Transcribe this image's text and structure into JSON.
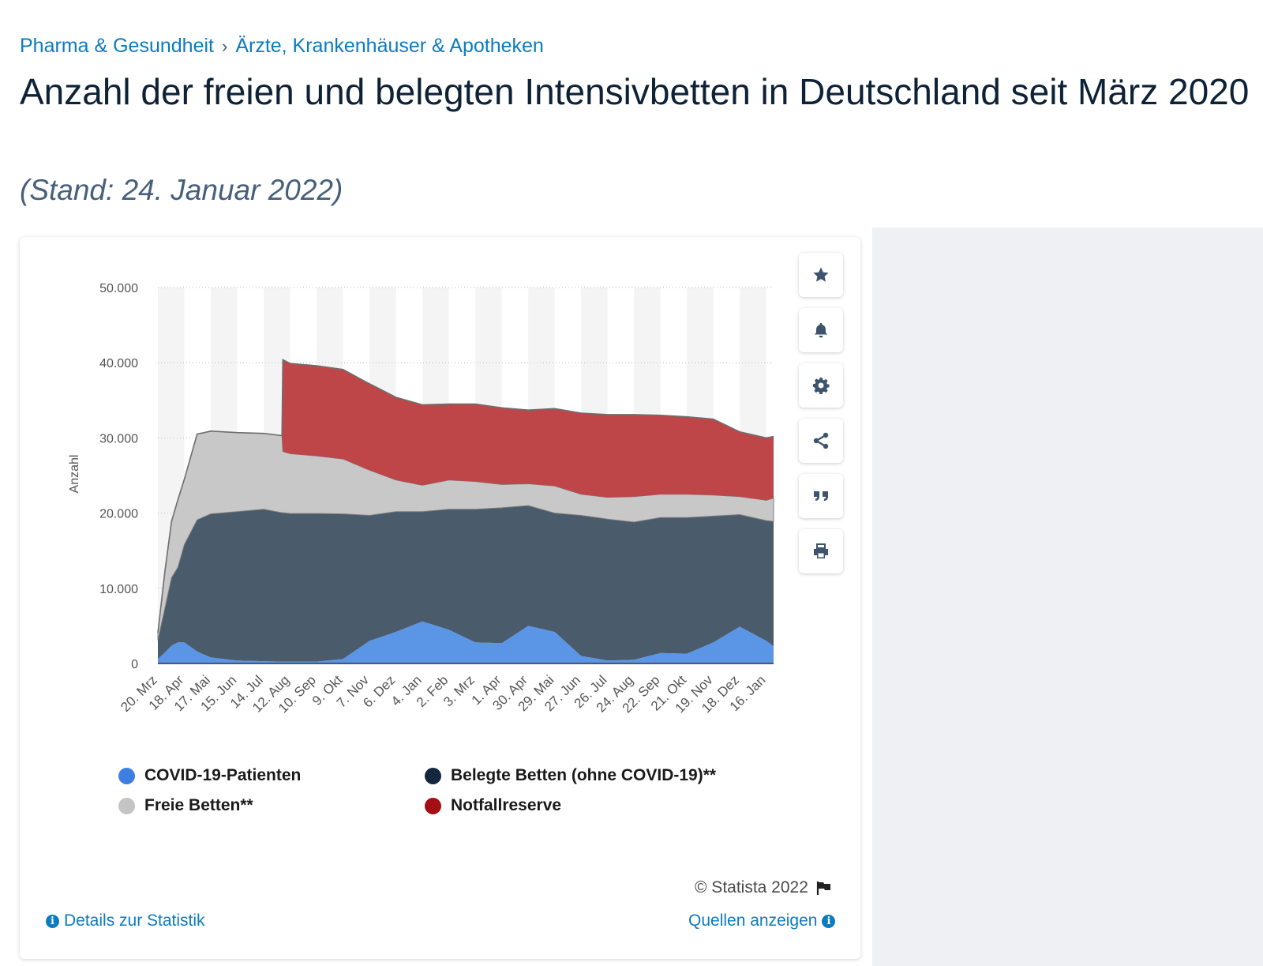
{
  "breadcrumb": {
    "category": "Pharma & Gesundheit",
    "separator": "›",
    "subcategory": "Ärzte, Krankenhäuser & Apotheken"
  },
  "page_title": "Anzahl der freien und belegten Intensivbetten in Deutschland seit März 2020",
  "subtitle": "(Stand: 24. Januar 2022)",
  "toolbar": {
    "icons": [
      "star-icon",
      "bell-icon",
      "gear-icon",
      "share-icon",
      "quote-icon",
      "print-icon"
    ]
  },
  "footer": {
    "copyright": "© Statista 2022",
    "details_link": "Details zur Statistik",
    "sources_link": "Quellen anzeigen"
  },
  "colors": {
    "covid": "#5b95e6",
    "belegt": "#4a5b6c",
    "frei": "#c8c8c8",
    "notfall": "#bf4648",
    "covid_legend": "#3d7fe0",
    "belegt_legend": "#13283e",
    "frei_legend": "#c4c4c4",
    "notfall_legend": "#a30f14",
    "link": "#0b7cbf"
  },
  "chart_data": {
    "type": "area",
    "stacked": true,
    "ylabel": "Anzahl",
    "ylim": [
      0,
      50000
    ],
    "yticks": [
      0,
      10000,
      20000,
      30000,
      40000,
      50000
    ],
    "ytick_labels": [
      "0",
      "10.000",
      "20.000",
      "30.000",
      "40.000",
      "50.000"
    ],
    "grid": "horizontal dotted",
    "legend_position": "bottom",
    "x_tick_labels": [
      "20. Mrz",
      "18. Apr",
      "17. Mai",
      "15. Jun",
      "14. Jul",
      "12. Aug",
      "10. Sep",
      "9. Okt",
      "7. Nov",
      "6. Dez",
      "4. Jan",
      "2. Feb",
      "3. Mrz",
      "1. Apr",
      "30. Apr",
      "29. Mai",
      "27. Jun",
      "26. Jul",
      "24. Aug",
      "22. Sep",
      "21. Okt",
      "19. Nov",
      "18. Dez",
      "16. Jan"
    ],
    "x": [
      "2020-03-20",
      "2020-03-28",
      "2020-04-04",
      "2020-04-11",
      "2020-04-18",
      "2020-05-02",
      "2020-05-17",
      "2020-06-15",
      "2020-07-14",
      "2020-08-03",
      "2020-08-04",
      "2020-08-12",
      "2020-09-10",
      "2020-10-09",
      "2020-11-07",
      "2020-12-06",
      "2021-01-04",
      "2021-02-02",
      "2021-03-03",
      "2021-04-01",
      "2021-04-30",
      "2021-05-29",
      "2021-06-27",
      "2021-07-26",
      "2021-08-24",
      "2021-09-22",
      "2021-10-21",
      "2021-11-19",
      "2021-12-18",
      "2022-01-16",
      "2022-01-24"
    ],
    "series": [
      {
        "name": "COVID-19-Patienten",
        "values": [
          600,
          1500,
          2400,
          2800,
          2800,
          1600,
          800,
          400,
          300,
          250,
          250,
          250,
          250,
          600,
          3000,
          4200,
          5600,
          4500,
          2800,
          2700,
          5000,
          4200,
          1000,
          400,
          500,
          1400,
          1300,
          2800,
          4900,
          3000,
          2300
        ]
      },
      {
        "name": "Belegte Betten (ohne COVID-19)**",
        "values": [
          2500,
          6000,
          9000,
          10000,
          13000,
          17500,
          19100,
          19800,
          20200,
          19800,
          19800,
          19700,
          19700,
          19300,
          16700,
          16000,
          14600,
          16000,
          17700,
          18000,
          16000,
          15800,
          18700,
          18800,
          18300,
          18000,
          18100,
          16800,
          14900,
          16000,
          16600
        ]
      },
      {
        "name": "Freie Betten**",
        "values": [
          1000,
          5000,
          7500,
          9000,
          8700,
          11400,
          11000,
          10500,
          10100,
          10250,
          8150,
          7950,
          7650,
          7300,
          6000,
          4200,
          3500,
          3900,
          3700,
          3100,
          2900,
          3600,
          2800,
          2900,
          3400,
          3100,
          3100,
          2800,
          2400,
          2700,
          3100
        ]
      },
      {
        "name": "Notfallreserve",
        "values": [
          0,
          0,
          0,
          0,
          0,
          0,
          0,
          0,
          0,
          0,
          12200,
          12000,
          12000,
          11900,
          11500,
          11000,
          10700,
          10100,
          10300,
          10200,
          9800,
          10300,
          10800,
          11000,
          10900,
          10500,
          10300,
          10100,
          8600,
          8300,
          8200
        ]
      }
    ]
  }
}
